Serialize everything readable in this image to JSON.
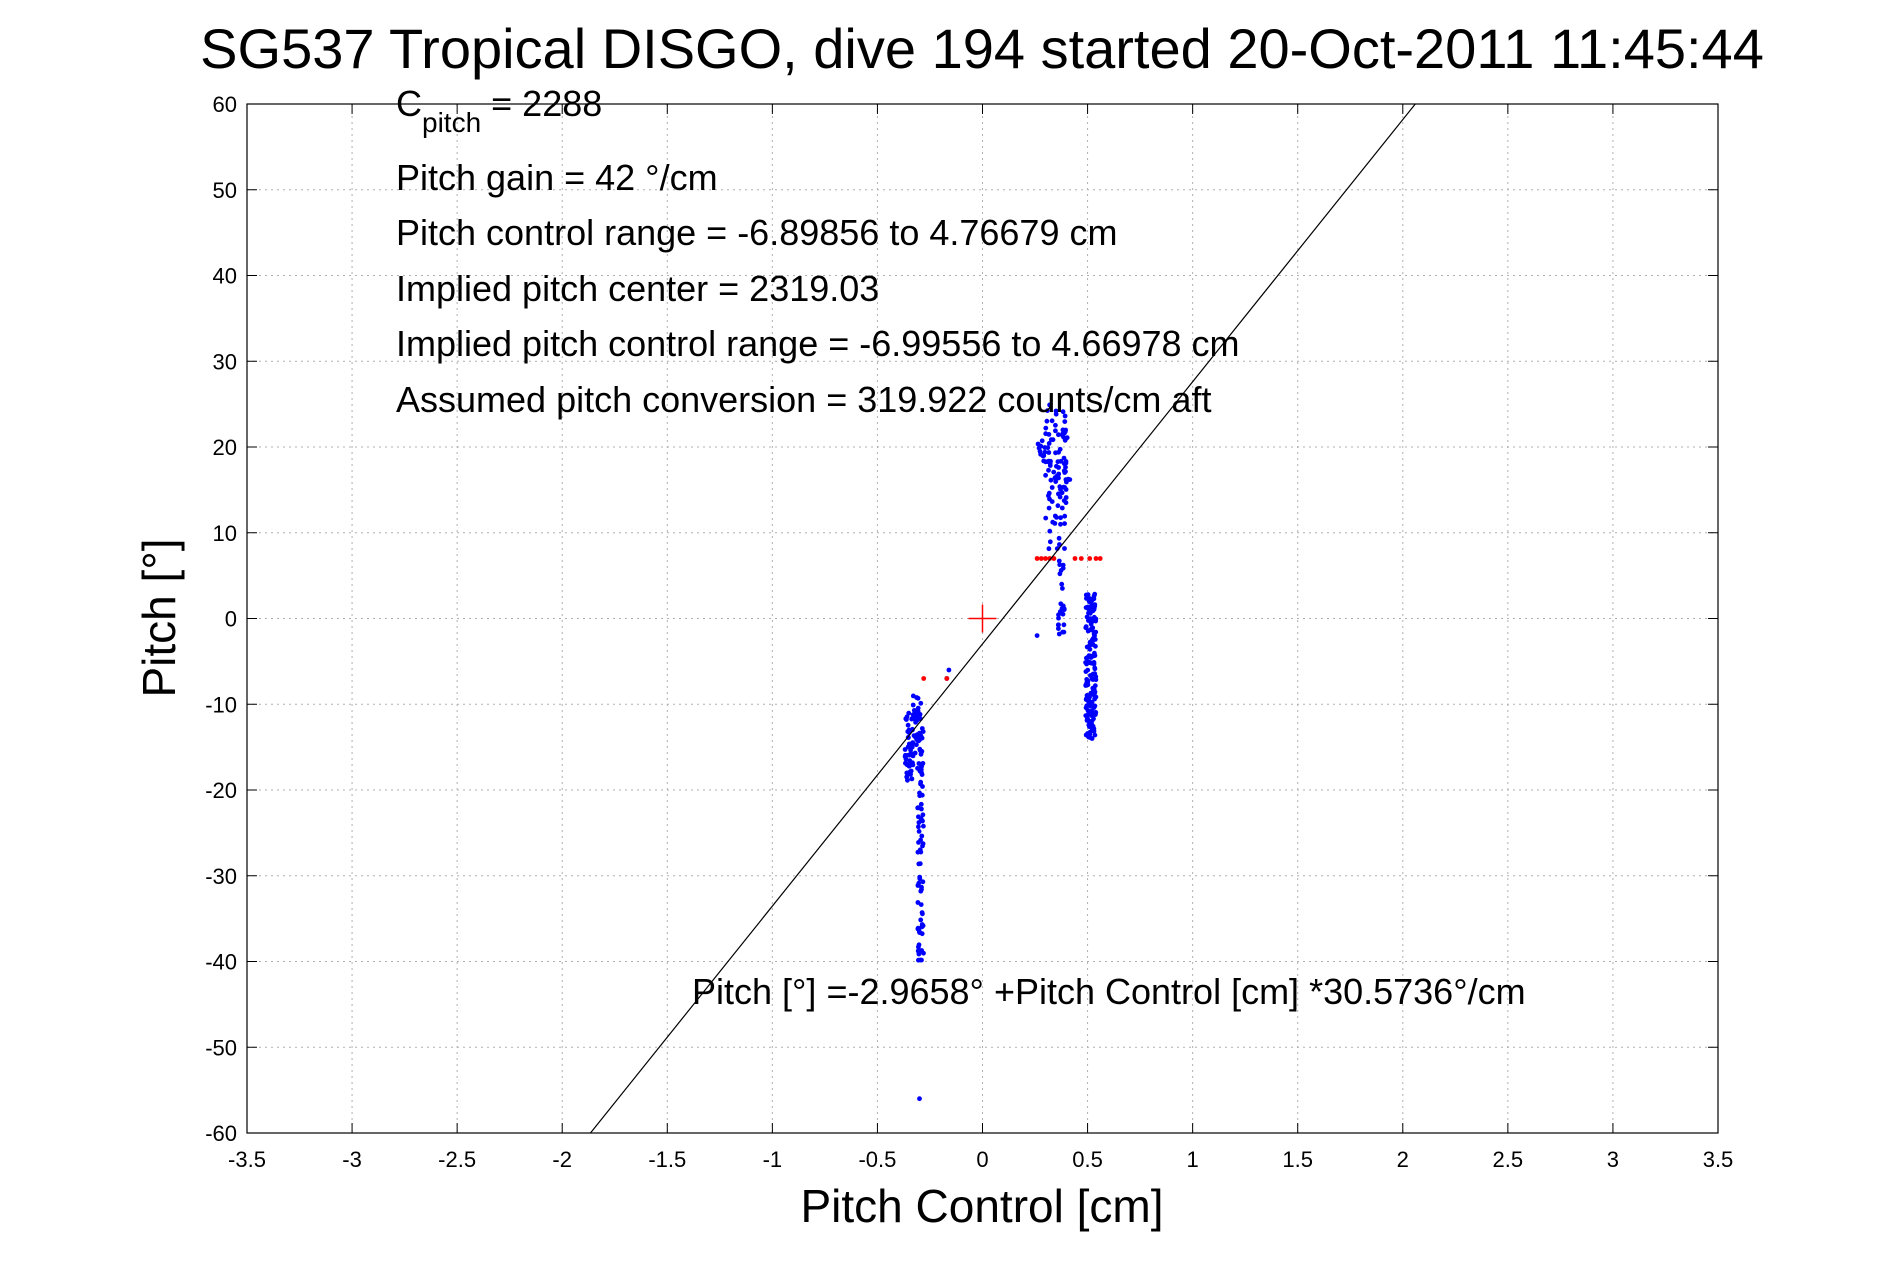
{
  "chart_data": {
    "type": "scatter",
    "title": "SG537 Tropical DISGO, dive 194 started 20-Oct-2011 11:45:44",
    "xlabel": "Pitch Control [cm]",
    "ylabel": "Pitch [°]",
    "xlim": [
      -3.5,
      3.5
    ],
    "ylim": [
      -60,
      60
    ],
    "xticks": [
      -3.5,
      -3,
      -2.5,
      -2,
      -1.5,
      -1,
      -0.5,
      0,
      0.5,
      1,
      1.5,
      2,
      2.5,
      3,
      3.5
    ],
    "xtick_labels": [
      "-3.5",
      "-3",
      "-2.5",
      "-2",
      "-1.5",
      "-1",
      "-0.5",
      "0",
      "0.5",
      "1",
      "1.5",
      "2",
      "2.5",
      "3",
      "3.5"
    ],
    "yticks": [
      -60,
      -50,
      -40,
      -30,
      -20,
      -10,
      0,
      10,
      20,
      30,
      40,
      50,
      60
    ],
    "ytick_labels": [
      "-60",
      "-50",
      "-40",
      "-30",
      "-20",
      "-10",
      "0",
      "10",
      "20",
      "30",
      "40",
      "50",
      "60"
    ],
    "grid": true,
    "fit_line": {
      "intercept": -2.9658,
      "slope": 30.5736,
      "color": "#000000",
      "label": "Pitch [°] =-2.9658° +Pitch Control [cm] *30.5736°/cm"
    },
    "center_marker": {
      "x": 0,
      "y": 0,
      "color": "#ff0000",
      "shape": "plus"
    },
    "series": [
      {
        "color": "#0000ff",
        "marker": "dot",
        "clusters": [
          {
            "x_min": -0.37,
            "x_max": -0.33,
            "y_min": -19,
            "y_max": -11,
            "count": 50
          },
          {
            "x_min": -0.33,
            "x_max": -0.28,
            "y_min": -16,
            "y_max": -9,
            "count": 40
          },
          {
            "x_min": -0.31,
            "x_max": -0.28,
            "y_min": -40,
            "y_max": -16,
            "count": 70
          },
          {
            "x_min": 0.26,
            "x_max": 0.3,
            "y_min": 18,
            "y_max": 21,
            "count": 12
          },
          {
            "x_min": 0.3,
            "x_max": 0.4,
            "y_min": 8,
            "y_max": 25,
            "count": 90
          },
          {
            "x_min": 0.38,
            "x_max": 0.43,
            "y_min": 16,
            "y_max": 22,
            "count": 10
          },
          {
            "x_min": 0.36,
            "x_max": 0.39,
            "y_min": -2,
            "y_max": 8,
            "count": 25
          },
          {
            "x_min": 0.49,
            "x_max": 0.54,
            "y_min": -14,
            "y_max": 3,
            "count": 170
          }
        ],
        "points": [
          [
            -0.3,
            -56
          ],
          [
            0.26,
            -2
          ],
          [
            -0.16,
            -6
          ],
          [
            -0.17,
            -7
          ],
          [
            -0.35,
            -13
          ],
          [
            -0.36,
            -18
          ]
        ]
      },
      {
        "color": "#ff0000",
        "marker": "dot",
        "points": [
          [
            0.26,
            7
          ],
          [
            0.28,
            7
          ],
          [
            0.3,
            7
          ],
          [
            0.32,
            7
          ],
          [
            0.34,
            7
          ],
          [
            0.44,
            7
          ],
          [
            0.47,
            7
          ],
          [
            0.51,
            7
          ],
          [
            0.54,
            7
          ],
          [
            0.56,
            7
          ],
          [
            -0.28,
            -7
          ],
          [
            -0.17,
            -7
          ]
        ]
      }
    ],
    "annotations": [
      {
        "label": "Pitch gain = 42 °/cm"
      },
      {
        "label": "Pitch control range = -6.89856 to 4.76679 cm"
      },
      {
        "label": "Implied pitch center = 2319.03"
      },
      {
        "label": "Implied pitch control range = -6.99556 to 4.66978 cm"
      },
      {
        "label": "Assumed pitch conversion = 319.922 counts/cm aft"
      }
    ],
    "cpitch": {
      "main": "C",
      "sub": "pitch",
      "rest": " = 2288"
    }
  }
}
